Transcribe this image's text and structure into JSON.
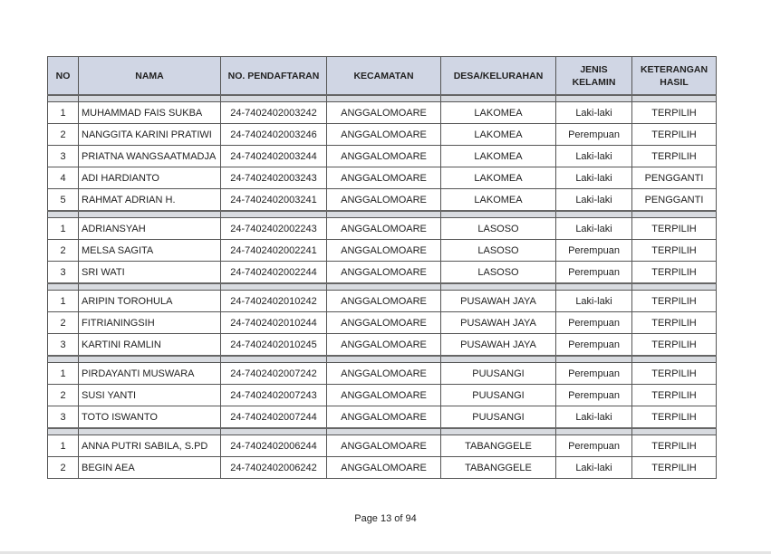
{
  "table": {
    "headers": [
      "NO",
      "NAMA",
      "NO. PENDAFTARAN",
      "KECAMATAN",
      "DESA/KELURAHAN",
      "JENIS KELAMIN",
      "KETERANGAN HASIL"
    ],
    "groups": [
      [
        [
          "1",
          "MUHAMMAD FAIS SUKBA",
          "24-7402402003242",
          "ANGGALOMOARE",
          "LAKOMEA",
          "Laki-laki",
          "TERPILIH"
        ],
        [
          "2",
          "NANGGITA KARINI PRATIWI",
          "24-7402402003246",
          "ANGGALOMOARE",
          "LAKOMEA",
          "Perempuan",
          "TERPILIH"
        ],
        [
          "3",
          "PRIATNA WANGSAATMADJA",
          "24-7402402003244",
          "ANGGALOMOARE",
          "LAKOMEA",
          "Laki-laki",
          "TERPILIH"
        ],
        [
          "4",
          "ADI HARDIANTO",
          "24-7402402003243",
          "ANGGALOMOARE",
          "LAKOMEA",
          "Laki-laki",
          "PENGGANTI"
        ],
        [
          "5",
          "RAHMAT ADRIAN H.",
          "24-7402402003241",
          "ANGGALOMOARE",
          "LAKOMEA",
          "Laki-laki",
          "PENGGANTI"
        ]
      ],
      [
        [
          "1",
          "ADRIANSYAH",
          "24-7402402002243",
          "ANGGALOMOARE",
          "LASOSO",
          "Laki-laki",
          "TERPILIH"
        ],
        [
          "2",
          "MELSA SAGITA",
          "24-7402402002241",
          "ANGGALOMOARE",
          "LASOSO",
          "Perempuan",
          "TERPILIH"
        ],
        [
          "3",
          "SRI WATI",
          "24-7402402002244",
          "ANGGALOMOARE",
          "LASOSO",
          "Perempuan",
          "TERPILIH"
        ]
      ],
      [
        [
          "1",
          "ARIPIN TOROHULA",
          "24-7402402010242",
          "ANGGALOMOARE",
          "PUSAWAH JAYA",
          "Laki-laki",
          "TERPILIH"
        ],
        [
          "2",
          "FITRIANINGSIH",
          "24-7402402010244",
          "ANGGALOMOARE",
          "PUSAWAH JAYA",
          "Perempuan",
          "TERPILIH"
        ],
        [
          "3",
          "KARTINI RAMLIN",
          "24-7402402010245",
          "ANGGALOMOARE",
          "PUSAWAH JAYA",
          "Perempuan",
          "TERPILIH"
        ]
      ],
      [
        [
          "1",
          "PIRDAYANTI MUSWARA",
          "24-7402402007242",
          "ANGGALOMOARE",
          "PUUSANGI",
          "Perempuan",
          "TERPILIH"
        ],
        [
          "2",
          "SUSI YANTI",
          "24-7402402007243",
          "ANGGALOMOARE",
          "PUUSANGI",
          "Perempuan",
          "TERPILIH"
        ],
        [
          "3",
          "TOTO ISWANTO",
          "24-7402402007244",
          "ANGGALOMOARE",
          "PUUSANGI",
          "Laki-laki",
          "TERPILIH"
        ]
      ],
      [
        [
          "1",
          "ANNA PUTRI SABILA, S.PD",
          "24-7402402006244",
          "ANGGALOMOARE",
          "TABANGGELE",
          "Perempuan",
          "TERPILIH"
        ],
        [
          "2",
          "BEGIN AEA",
          "24-7402402006242",
          "ANGGALOMOARE",
          "TABANGGELE",
          "Laki-laki",
          "TERPILIH"
        ]
      ]
    ]
  },
  "footer": {
    "page_label": "Page 13 of 94"
  },
  "colors": {
    "header_bg": "#d0d6e4",
    "separator_bg": "#d8dbe0"
  }
}
